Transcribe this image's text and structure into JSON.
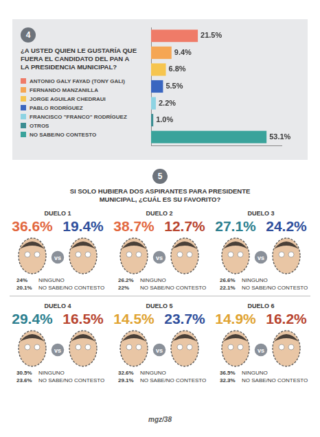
{
  "chart_data": {
    "type": "bar",
    "title": "¿A USTED QUIEN LE GUSTARÍA QUE FUERA EL CANDIDATO DEL PAN A LA PRESIDENCIA MUNICIPAL?",
    "categories": [
      "ANTONIO GALY FAYAD (TONY GALI)",
      "FERNANDO MANZANILLA",
      "JORGE AGUILAR CHEDRAUI",
      "PABLO RODRÍGUEZ",
      "FRANCISCO \"FRANCO\" RODRÍGUEZ",
      "OTROS",
      "NO SABE/NO CONTESTO"
    ],
    "values": [
      21.5,
      9.4,
      6.8,
      5.5,
      2.2,
      1.0,
      53.1
    ],
    "value_labels": [
      "21.5%",
      "9.4%",
      "6.8%",
      "5.5%",
      "2.2%",
      "1.0%",
      "53.1%"
    ],
    "colors": [
      "#ef7b68",
      "#f5a654",
      "#f6c54f",
      "#3a66c0",
      "#8dd3e3",
      "#3b8d92",
      "#3aa39b"
    ],
    "orientation": "horizontal",
    "xlim": [
      0,
      60
    ],
    "grid": false,
    "tick_labels": false,
    "data_labels": true,
    "legend": "left"
  },
  "section_4": {
    "badge": "4"
  },
  "section_5": {
    "badge": "5",
    "title": "SI SOLO HUBIERA DOS ASPIRANTES PARA PRESIDENTE MUNICIPAL, ¿CUÁL ES SU FAVORITO?",
    "vs_label": "vs",
    "duels": [
      {
        "title": "DUELO 1",
        "results": [
          "36.6%",
          "19.4%"
        ],
        "colors": [
          "#e2673e",
          "#2f4f9c"
        ],
        "others": [
          [
            "24%",
            "NINGUNO"
          ],
          [
            "20.1%",
            "NO SABE/NO CONTESTO"
          ]
        ]
      },
      {
        "title": "DUELO 2",
        "results": [
          "38.7%",
          "12.7%"
        ],
        "colors": [
          "#e2673e",
          "#b8452f"
        ],
        "others": [
          [
            "26.2%",
            "NINGUNO"
          ],
          [
            "22%",
            "NO SABE/NO CONTESTO"
          ]
        ]
      },
      {
        "title": "DUELO 3",
        "results": [
          "27.1%",
          "24.2%"
        ],
        "colors": [
          "#2c7f8f",
          "#2f4f9c"
        ],
        "others": [
          [
            "26.6%",
            "NINGUNO"
          ],
          [
            "22.1%",
            "NO SABE/NO CONTESTO"
          ]
        ]
      },
      {
        "title": "DUELO 4",
        "results": [
          "29.4%",
          "16.5%"
        ],
        "colors": [
          "#2c7f8f",
          "#b8452f"
        ],
        "others": [
          [
            "30.5%",
            "NINGUNO"
          ],
          [
            "23.6%",
            "NO SABE/NO CONTESTO"
          ]
        ]
      },
      {
        "title": "DUELO 5",
        "results": [
          "14.5%",
          "23.7%"
        ],
        "colors": [
          "#e0a331",
          "#2f4f9c"
        ],
        "others": [
          [
            "32.6%",
            "NINGUNO"
          ],
          [
            "29.1%",
            "NO SABE/NO CONTESTO"
          ]
        ]
      },
      {
        "title": "DUELO 6",
        "results": [
          "14.9%",
          "16.2%"
        ],
        "colors": [
          "#e0a331",
          "#b8452f"
        ],
        "others": [
          [
            "36.5%",
            "NINGUNO"
          ],
          [
            "32.3%",
            "NO SABE/NO CONTESTO"
          ]
        ]
      }
    ]
  },
  "footer": "mgz/38"
}
